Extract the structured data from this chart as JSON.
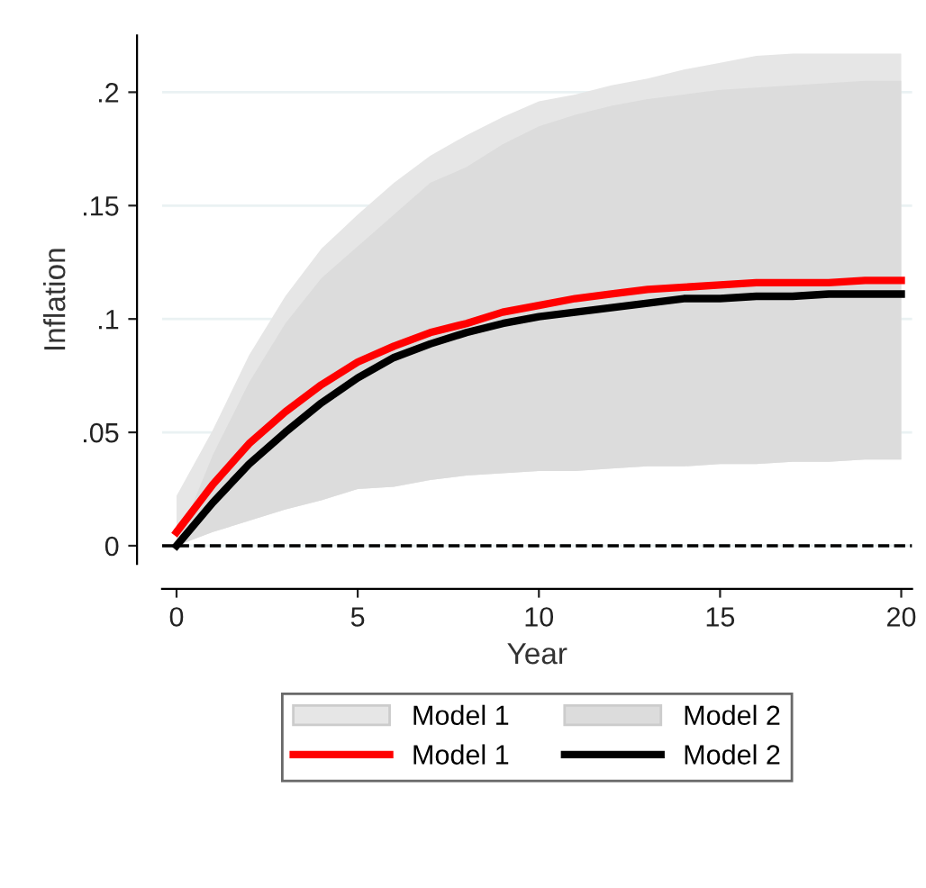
{
  "chart_data": {
    "type": "line",
    "xlabel": "Year",
    "ylabel": "Inflation",
    "x": [
      0,
      1,
      2,
      3,
      4,
      5,
      6,
      7,
      8,
      9,
      10,
      11,
      12,
      13,
      14,
      15,
      16,
      17,
      18,
      19,
      20
    ],
    "series": [
      {
        "name": "Model 1",
        "color": "#ff0000",
        "values": [
          0.006,
          0.027,
          0.045,
          0.059,
          0.071,
          0.081,
          0.088,
          0.094,
          0.098,
          0.103,
          0.106,
          0.109,
          0.111,
          0.113,
          0.114,
          0.115,
          0.116,
          0.116,
          0.116,
          0.117,
          0.117
        ],
        "lower": [
          0,
          0.006,
          0.011,
          0.016,
          0.02,
          0.025,
          0.026,
          0.029,
          0.031,
          0.032,
          0.033,
          0.033,
          0.034,
          0.035,
          0.035,
          0.036,
          0.036,
          0.037,
          0.037,
          0.038,
          0.038
        ],
        "upper": [
          0.022,
          0.051,
          0.084,
          0.11,
          0.131,
          0.146,
          0.16,
          0.172,
          0.181,
          0.189,
          0.196,
          0.199,
          0.203,
          0.206,
          0.21,
          0.213,
          0.216,
          0.217,
          0.217,
          0.217,
          0.217
        ]
      },
      {
        "name": "Model 2",
        "color": "#000000",
        "values": [
          0,
          0.019,
          0.036,
          0.05,
          0.063,
          0.074,
          0.083,
          0.089,
          0.094,
          0.098,
          0.101,
          0.103,
          0.105,
          0.107,
          0.109,
          0.109,
          0.11,
          0.11,
          0.111,
          0.111,
          0.111
        ],
        "lower": [
          0,
          0.006,
          0.011,
          0.016,
          0.02,
          0.025,
          0.026,
          0.029,
          0.031,
          0.032,
          0.033,
          0.033,
          0.034,
          0.035,
          0.035,
          0.036,
          0.036,
          0.037,
          0.037,
          0.038,
          0.038
        ],
        "upper": [
          0.001,
          0.04,
          0.072,
          0.098,
          0.118,
          0.132,
          0.146,
          0.16,
          0.167,
          0.177,
          0.185,
          0.19,
          0.194,
          0.197,
          0.199,
          0.201,
          0.202,
          0.203,
          0.204,
          0.205,
          0.205
        ]
      }
    ],
    "xlim": [
      -0.4,
      20.3
    ],
    "xticks": [
      0,
      5,
      10,
      15,
      20
    ],
    "ylim": [
      -0.008,
      0.225
    ],
    "yticks": [
      {
        "value": 0,
        "label": "0"
      },
      {
        "value": 0.05,
        "label": ".05"
      },
      {
        "value": 0.1,
        "label": ".1"
      },
      {
        "value": 0.15,
        "label": ".15"
      },
      {
        "value": 0.2,
        "label": ".2"
      }
    ],
    "ref_lines": [
      {
        "axis": "y",
        "value": 0,
        "color": "#000000",
        "line_style": "dashed"
      }
    ],
    "grid": "y",
    "legend": "bottom",
    "line_style": "solid",
    "marker": "none"
  }
}
